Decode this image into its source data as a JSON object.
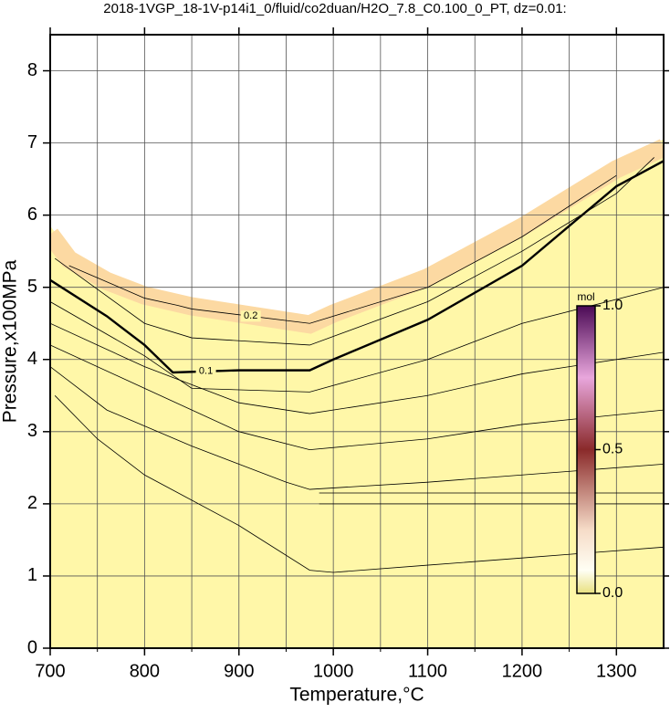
{
  "chart_data": {
    "type": "contour",
    "title": "2018-1VGP_18-1V-p14i1_0/fluid/co2duan/H2O_7.8_C0.100_0_PT, dz=0.01:",
    "xlabel": "Temperature,°C",
    "ylabel": "Pressure,x100MPa",
    "xlim": [
      700,
      1350
    ],
    "ylim": [
      0,
      8.5
    ],
    "xticks": [
      700,
      800,
      900,
      1000,
      1100,
      1200,
      1300
    ],
    "yticks": [
      0,
      1,
      2,
      3,
      4,
      5,
      6,
      7,
      8
    ],
    "xgrid": [
      750,
      800,
      850,
      900,
      950,
      1000,
      1050,
      1100,
      1150,
      1200,
      1250,
      1300
    ],
    "grid": true,
    "boundary": {
      "x": [
        700,
        720,
        760,
        800,
        850,
        900,
        975,
        1000,
        1100,
        1200,
        1300,
        1350
      ],
      "y": [
        5.85,
        5.5,
        5.2,
        5.0,
        4.85,
        4.75,
        4.6,
        4.75,
        5.25,
        5.95,
        6.75,
        7.05
      ]
    },
    "lines": [
      {
        "x": [
          705,
          750,
          800,
          900,
          975,
          1000,
          1100,
          1200,
          1350
        ],
        "y": [
          3.5,
          2.9,
          2.4,
          1.7,
          1.08,
          1.05,
          1.15,
          1.25,
          1.4
        ]
      },
      {
        "x": [
          700,
          760,
          850,
          950,
          975,
          1100,
          1200,
          1350
        ],
        "y": [
          3.9,
          3.3,
          2.8,
          2.3,
          2.2,
          2.3,
          2.4,
          2.55
        ]
      },
      {
        "x": [
          700,
          800,
          900,
          975,
          1100,
          1200,
          1350
        ],
        "y": [
          4.2,
          3.6,
          3.0,
          2.75,
          2.9,
          3.1,
          3.3
        ]
      },
      {
        "x": [
          700,
          800,
          900,
          975,
          1100,
          1200,
          1350
        ],
        "y": [
          4.5,
          3.9,
          3.4,
          3.25,
          3.5,
          3.8,
          4.1
        ]
      },
      {
        "x": [
          700,
          800,
          850,
          975,
          1100,
          1200,
          1350
        ],
        "y": [
          4.8,
          4.05,
          3.6,
          3.55,
          4.0,
          4.5,
          5.0
        ]
      },
      {
        "x": [
          700,
          760,
          800,
          830,
          900,
          975,
          1000,
          1100,
          1200,
          1300,
          1350
        ],
        "y": [
          5.1,
          4.6,
          4.2,
          3.82,
          3.85,
          3.85,
          4.0,
          4.55,
          5.3,
          6.4,
          6.75
        ],
        "label": "0.1",
        "bold": true
      },
      {
        "x": [
          705,
          800,
          850,
          975,
          1100,
          1200,
          1300,
          1340
        ],
        "y": [
          5.4,
          4.5,
          4.3,
          4.2,
          4.8,
          5.5,
          6.3,
          6.8
        ]
      },
      {
        "x": [
          720,
          800,
          835,
          850,
          975,
          1100,
          1200,
          1300
        ],
        "y": [
          5.3,
          4.85,
          4.75,
          4.7,
          4.5,
          5.0,
          5.7,
          6.55
        ],
        "label": "0.2"
      },
      {
        "x": [
          985,
          1350
        ],
        "y": [
          2.15,
          2.15
        ]
      },
      {
        "x": [
          985,
          1350
        ],
        "y": [
          2.0,
          2.0
        ]
      }
    ],
    "colorbar": {
      "unit": "mol",
      "lim": [
        0,
        1
      ],
      "ticks": [
        {
          "value": 0,
          "label": "0.0"
        },
        {
          "value": 0.5,
          "label": "0.5"
        },
        {
          "value": 1,
          "label": "1.0"
        }
      ]
    }
  }
}
